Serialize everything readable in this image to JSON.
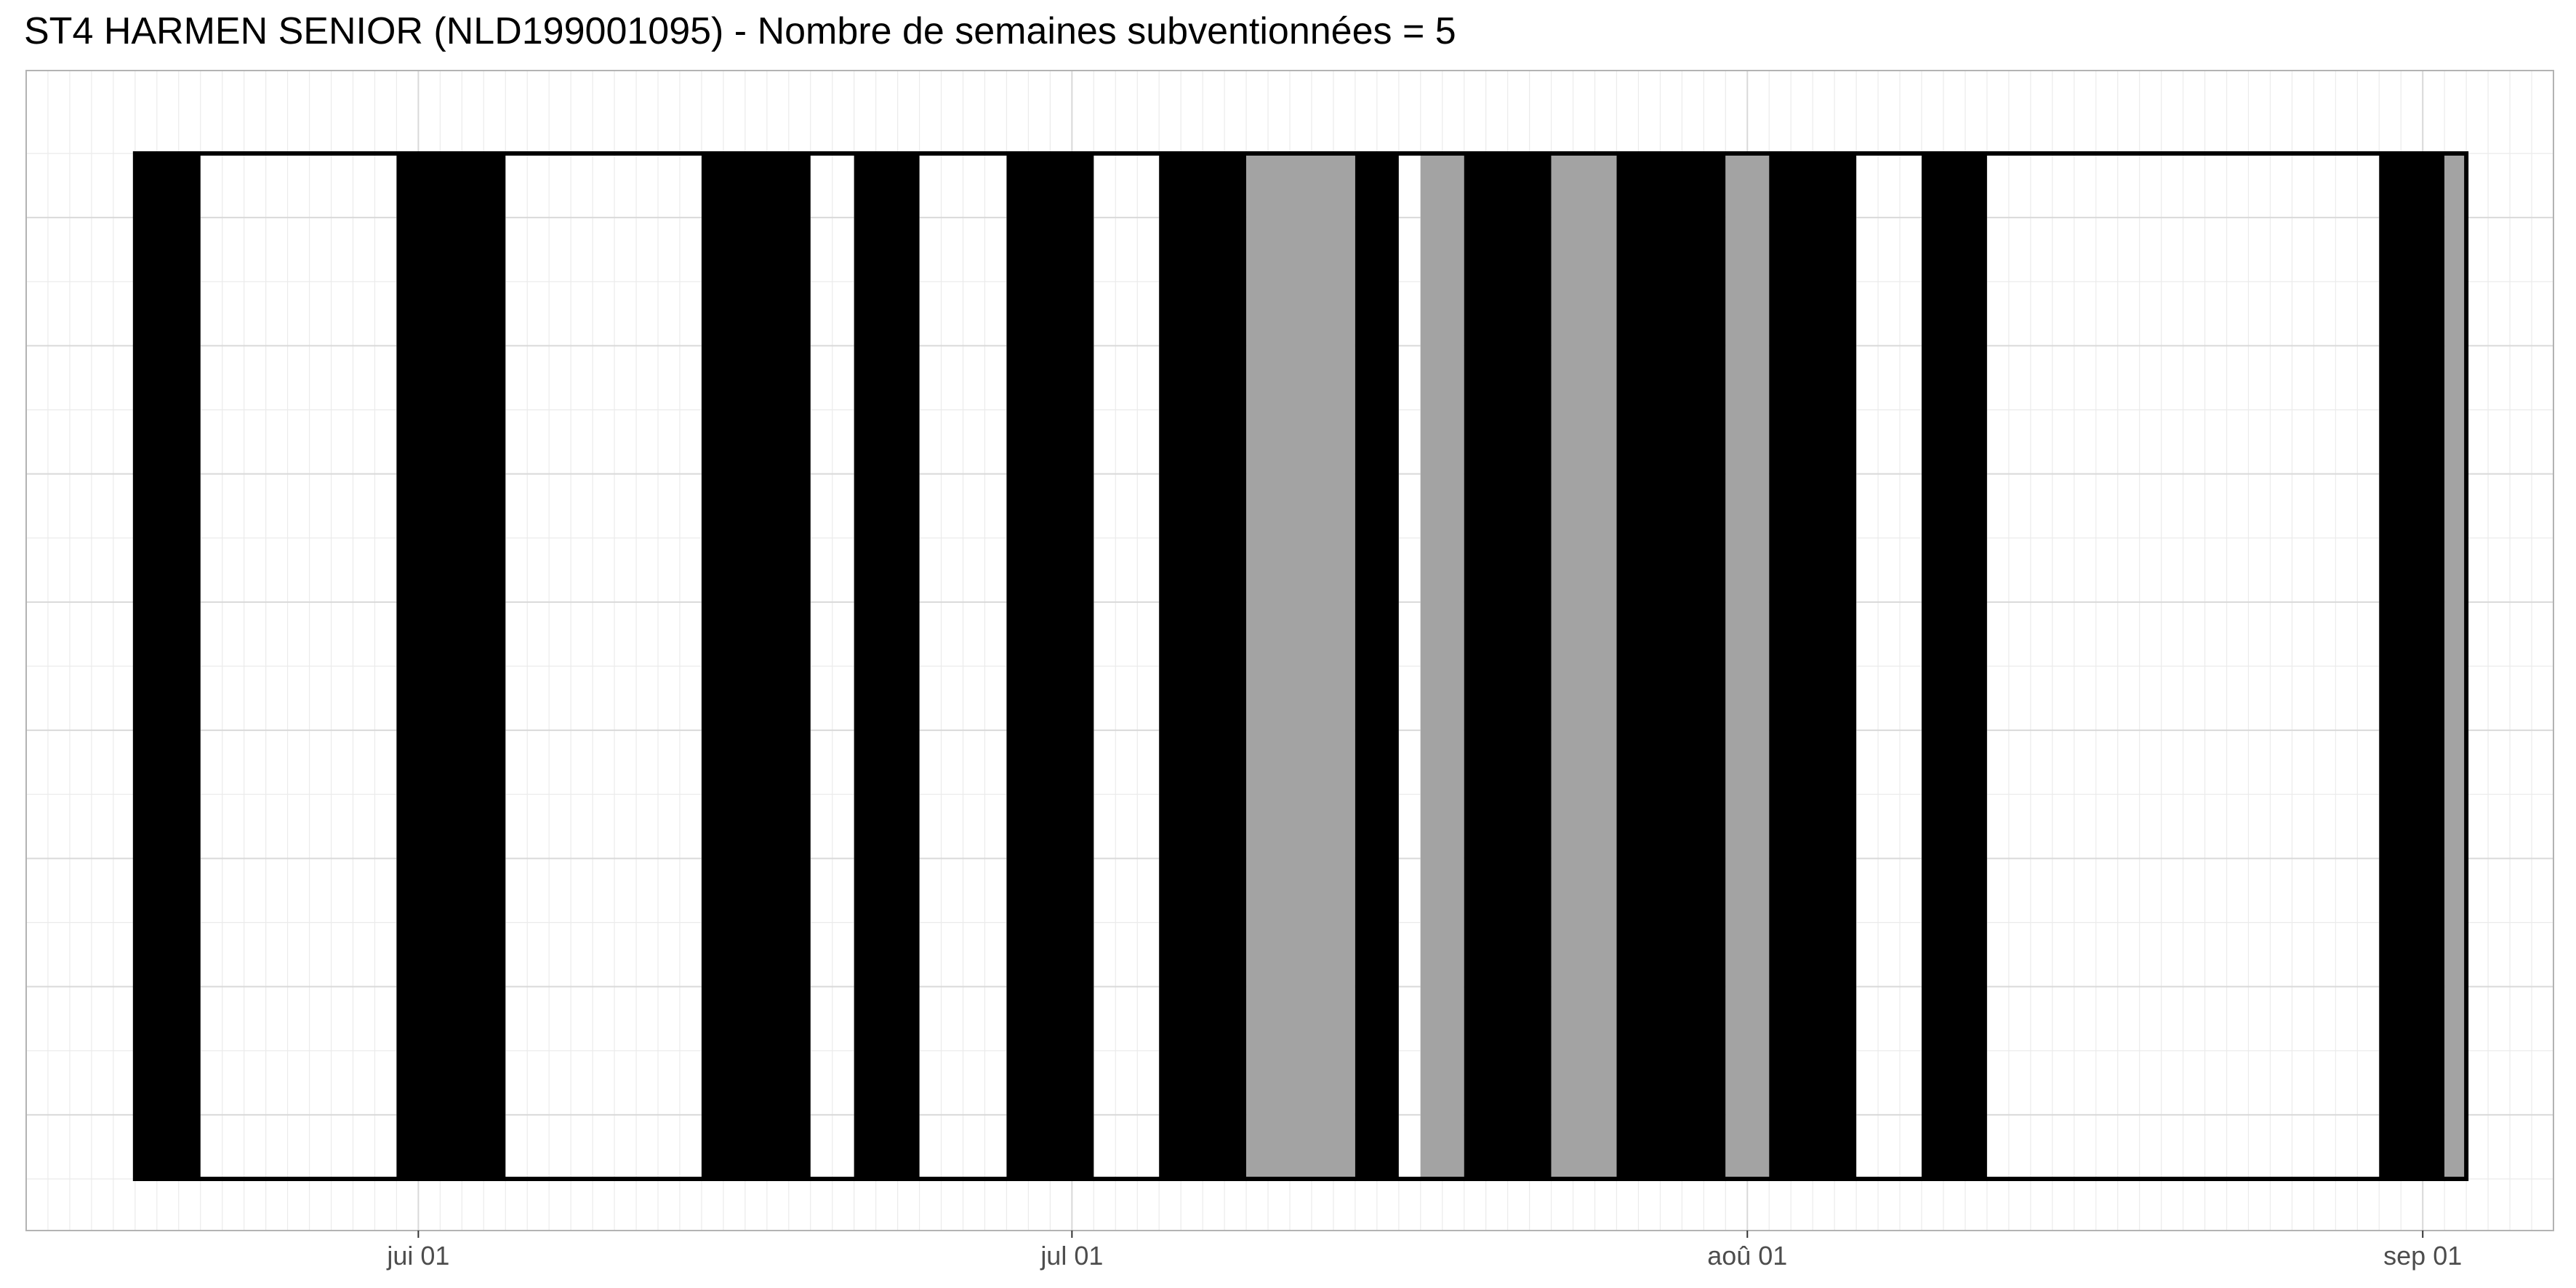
{
  "chart_data": {
    "type": "bar",
    "title": "ST4 HARMEN SENIOR (NLD199001095) - Nombre de semaines subventionnées = 5",
    "xlabel": "",
    "ylabel": "",
    "x_axis": {
      "type": "date",
      "range": [
        "2020-05-14",
        "2020-09-07"
      ],
      "ticks": [
        {
          "date": "2020-06-01",
          "label": "jui 01"
        },
        {
          "date": "2020-07-01",
          "label": "jul 01"
        },
        {
          "date": "2020-08-01",
          "label": "aoû 01"
        },
        {
          "date": "2020-09-01",
          "label": "sep 01"
        }
      ]
    },
    "y_axis": {
      "tick_labels": false
    },
    "grid": true,
    "legend": "none",
    "colors": {
      "active": "#000000",
      "subsidized": "#a3a3a3",
      "outline": "#000000",
      "panel_border": "#b3b3b3",
      "grid_major": "#d9d9d9",
      "grid_minor": "#ebebeb",
      "tick_text": "#4d4d4d",
      "title": "#000000"
    },
    "period": {
      "start": "2020-05-19",
      "end": "2020-09-03"
    },
    "bars": [
      {
        "start": "2020-05-19",
        "end": "2020-05-22",
        "category": "active"
      },
      {
        "start": "2020-05-31",
        "end": "2020-06-05",
        "category": "active"
      },
      {
        "start": "2020-06-14",
        "end": "2020-06-19",
        "category": "active"
      },
      {
        "start": "2020-06-21",
        "end": "2020-06-24",
        "category": "active"
      },
      {
        "start": "2020-06-28",
        "end": "2020-07-02",
        "category": "active"
      },
      {
        "start": "2020-07-05",
        "end": "2020-07-09",
        "category": "active"
      },
      {
        "start": "2020-07-09",
        "end": "2020-07-14",
        "category": "subsidized"
      },
      {
        "start": "2020-07-14",
        "end": "2020-07-16",
        "category": "active"
      },
      {
        "start": "2020-07-17",
        "end": "2020-07-19",
        "category": "subsidized"
      },
      {
        "start": "2020-07-19",
        "end": "2020-07-23",
        "category": "active"
      },
      {
        "start": "2020-07-23",
        "end": "2020-07-26",
        "category": "subsidized"
      },
      {
        "start": "2020-07-26",
        "end": "2020-07-31",
        "category": "active"
      },
      {
        "start": "2020-07-31",
        "end": "2020-08-02",
        "category": "subsidized"
      },
      {
        "start": "2020-08-02",
        "end": "2020-08-06",
        "category": "active"
      },
      {
        "start": "2020-08-09",
        "end": "2020-08-12",
        "category": "active"
      },
      {
        "start": "2020-08-30",
        "end": "2020-09-02",
        "category": "active"
      },
      {
        "start": "2020-09-02",
        "end": "2020-09-03",
        "category": "subsidized"
      }
    ]
  }
}
